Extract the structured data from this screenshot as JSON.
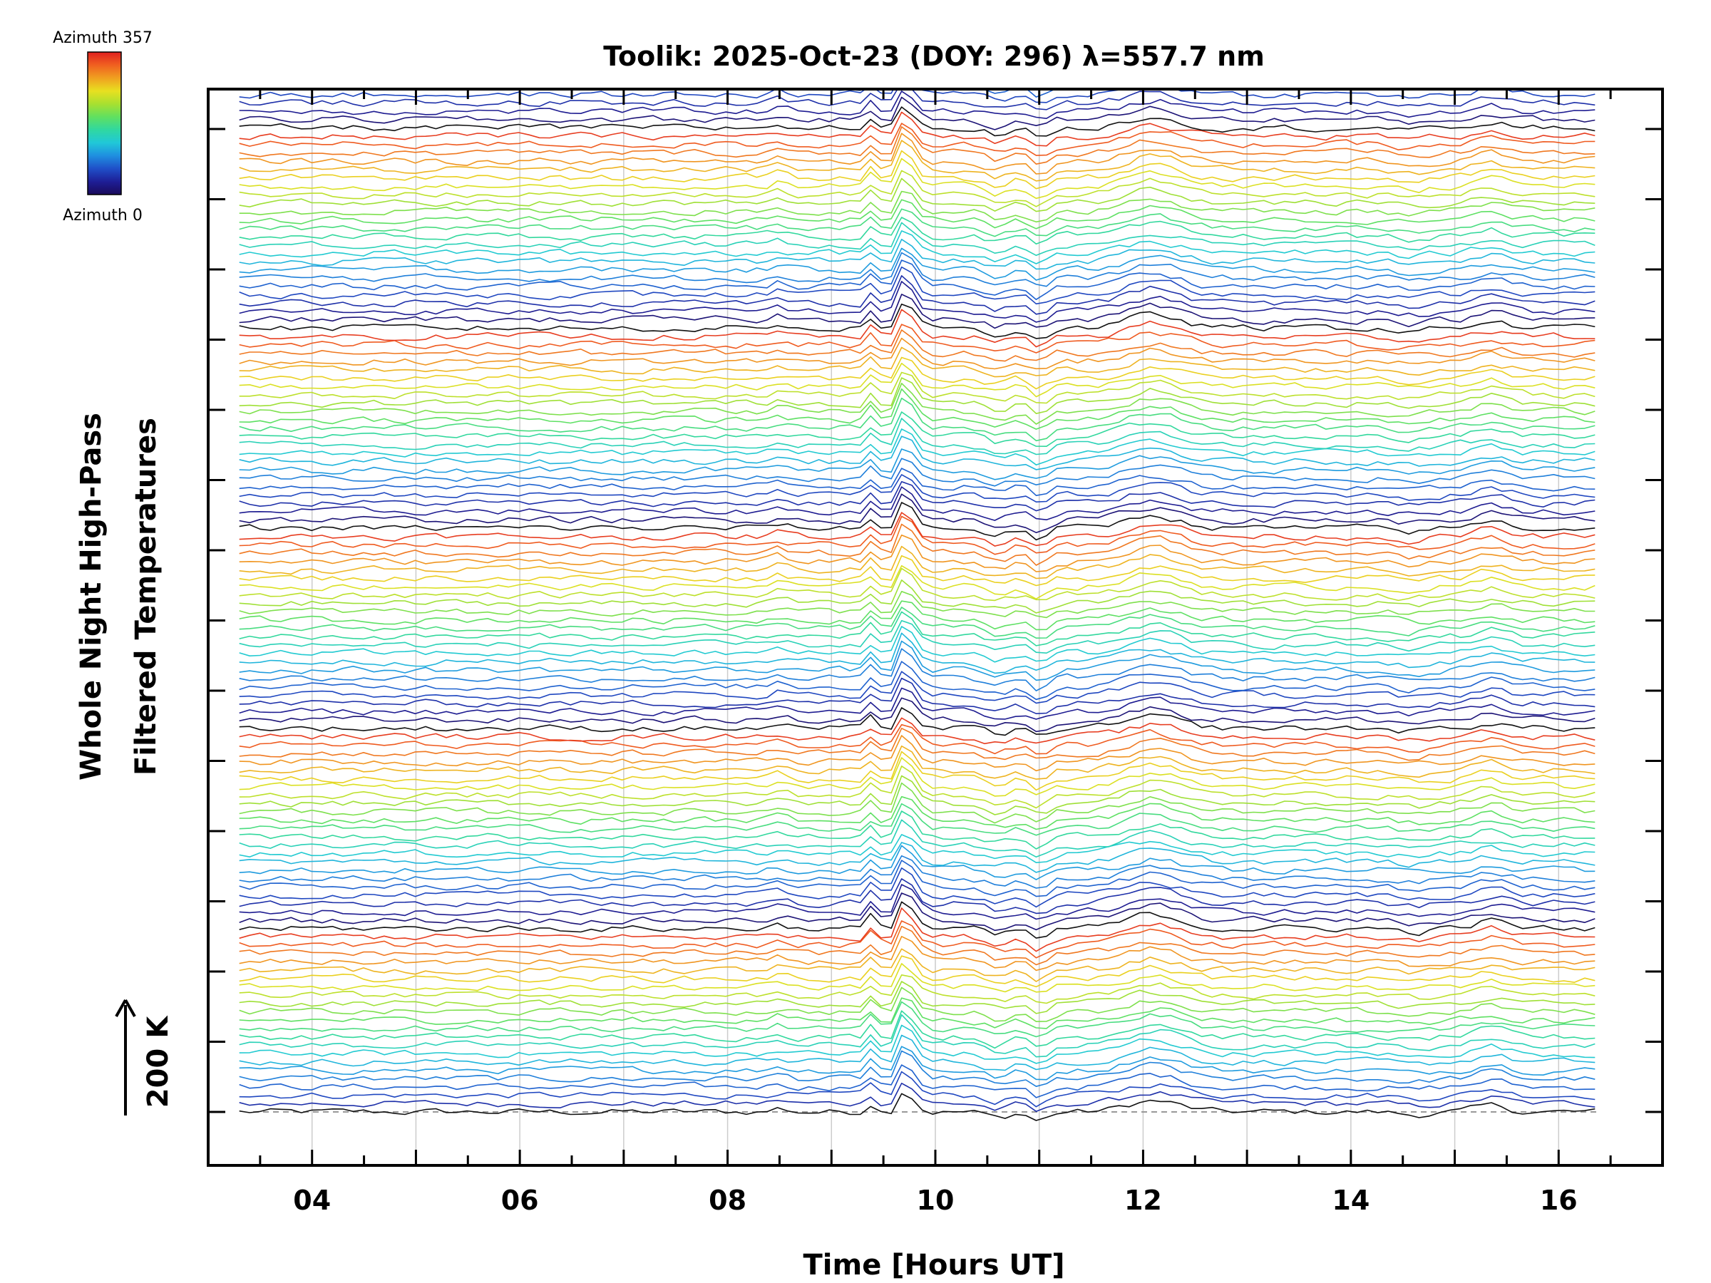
{
  "chart_data": {
    "type": "line",
    "title": "Toolik: 2025-Oct-23 (DOY: 296) λ=557.7 nm",
    "xlabel": "Time [Hours UT]",
    "ylabel_line1": "Whole Night High-Pass",
    "ylabel_line2": "Filtered Temperatures",
    "scale_label": "200 K",
    "colorbar": {
      "top_label": "Azimuth 357",
      "bottom_label": "Azimuth 0",
      "colors": [
        "#1a0a5a",
        "#1e1e96",
        "#1f4fc8",
        "#1f8fe0",
        "#20c8d8",
        "#30d8a0",
        "#60e060",
        "#a8e030",
        "#e8e020",
        "#f0a020",
        "#f06020",
        "#e02020"
      ]
    },
    "x_ticks": [
      "04",
      "06",
      "08",
      "10",
      "12",
      "14",
      "16"
    ],
    "x_tick_values": [
      4,
      6,
      8,
      10,
      12,
      14,
      16
    ],
    "xlim": [
      3.0,
      17.0
    ],
    "time_start": 3.3,
    "time_end": 16.35,
    "sample_count": 132,
    "trace_count": 160,
    "trace_spacing_K": 10,
    "features": [
      {
        "time": 9.7,
        "amplitude_K": 30,
        "width_h": 0.13
      },
      {
        "time": 9.4,
        "amplitude_K": 14,
        "width_h": 0.06
      },
      {
        "time": 9.55,
        "amplitude_K": -12,
        "width_h": 0.06
      },
      {
        "time": 12.1,
        "amplitude_K": 15,
        "width_h": 0.35
      },
      {
        "time": 11.0,
        "amplitude_K": -12,
        "width_h": 0.12
      },
      {
        "time": 10.6,
        "amplitude_K": -8,
        "width_h": 0.15
      },
      {
        "time": 8.5,
        "amplitude_K": 5,
        "width_h": 0.1
      },
      {
        "time": 15.35,
        "amplitude_K": 8,
        "width_h": 0.2
      },
      {
        "time": 14.6,
        "amplitude_K": -4,
        "width_h": 0.2
      }
    ],
    "grid": true,
    "baseline_dashed": true
  }
}
